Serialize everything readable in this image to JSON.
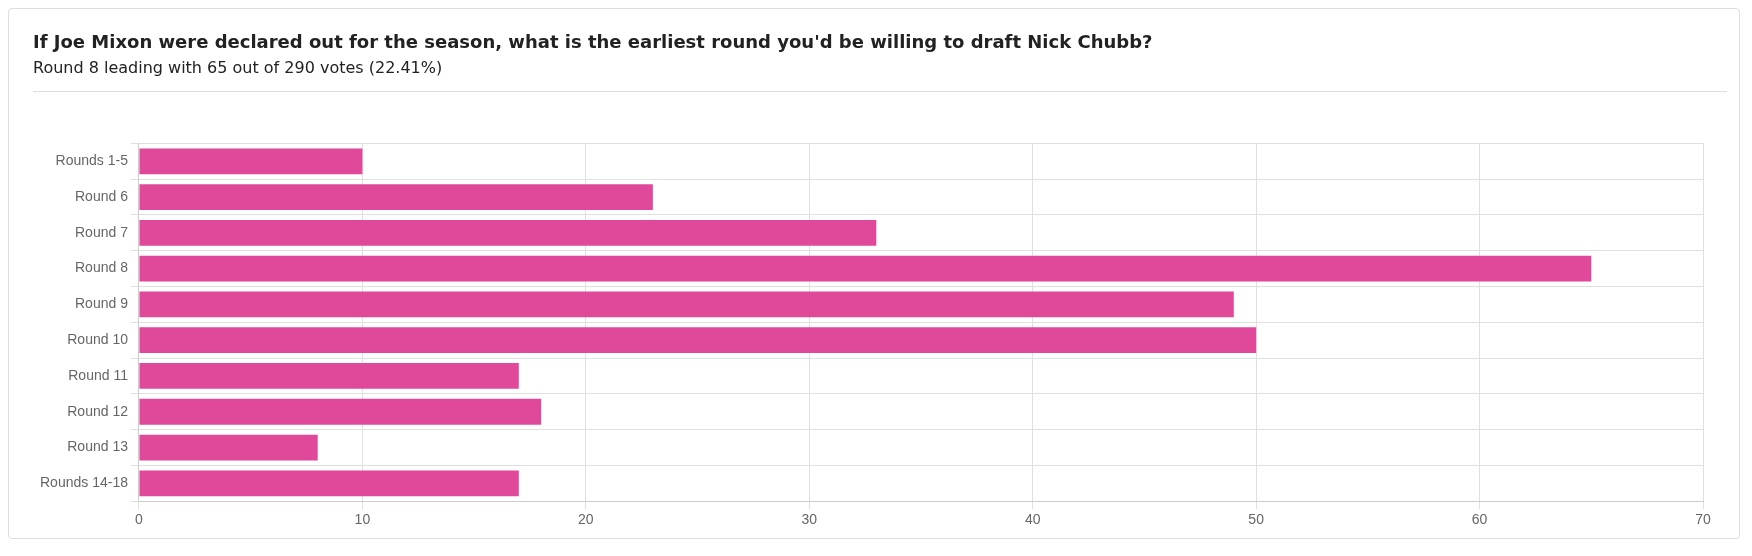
{
  "chart_data": {
    "type": "bar",
    "title": "If Joe Mixon were declared out for the season, what is the earliest round you'd be willing to draft Nick Chubb?",
    "subtitle": "Round 8 leading with 65 out of 290 votes (22.41%)",
    "orientation": "horizontal",
    "categories": [
      "Rounds 1-5",
      "Round 6",
      "Round 7",
      "Round 8",
      "Round 9",
      "Round 10",
      "Round 11",
      "Round 12",
      "Round 13",
      "Rounds 14-18"
    ],
    "values": [
      10,
      23,
      33,
      65,
      49,
      50,
      17,
      18,
      8,
      17
    ],
    "color": "#e0489a",
    "xlim": [
      0,
      70
    ],
    "xticks": [
      0,
      10,
      20,
      30,
      40,
      50,
      60,
      70
    ],
    "grid": true,
    "legend": false
  }
}
